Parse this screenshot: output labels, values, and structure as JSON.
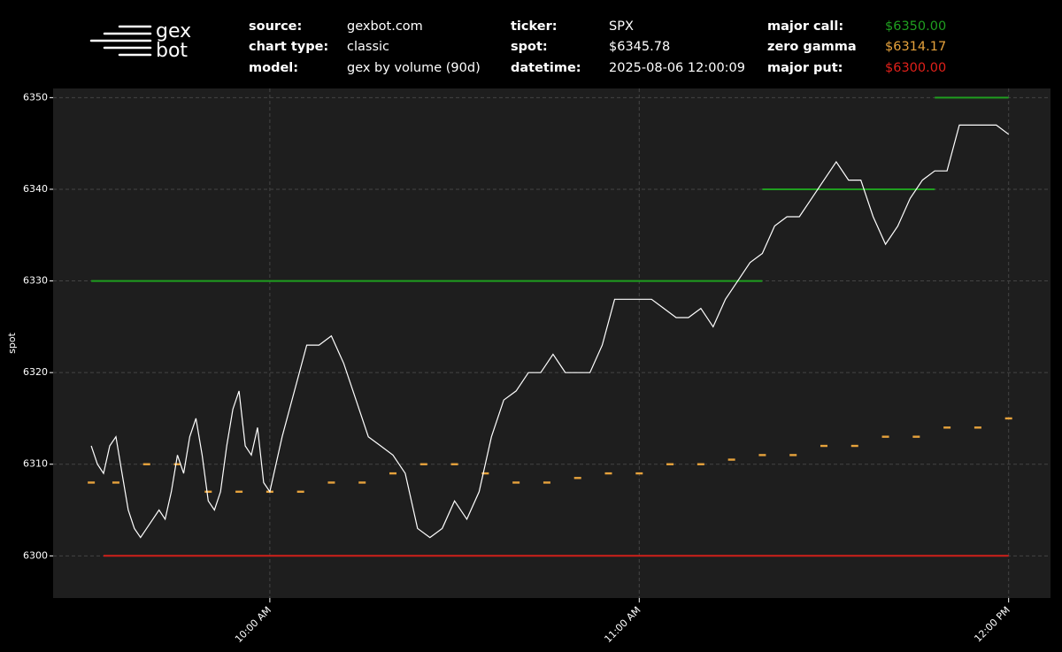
{
  "header": {
    "logo": [
      "gex",
      "bot"
    ],
    "fields": [
      {
        "label": "source:",
        "value": "gexbot.com"
      },
      {
        "label": "chart type:",
        "value": "classic"
      },
      {
        "label": "model:",
        "value": "gex by volume (90d)"
      },
      {
        "label": "ticker:",
        "value": "SPX"
      },
      {
        "label": "spot:",
        "value": "$6345.78"
      },
      {
        "label": "datetime:",
        "value": "2025-08-06 12:00:09"
      },
      {
        "label": "major call:",
        "value": "$6350.00",
        "color": "#1f9e1f"
      },
      {
        "label": "zero gamma",
        "value": "$6314.17",
        "color": "#e6a23c"
      },
      {
        "label": "major put:",
        "value": "$6300.00",
        "color": "#e0201a"
      }
    ]
  },
  "chart_data": {
    "type": "line",
    "ylabel": "spot",
    "xlim": [
      564.8,
      726.8
    ],
    "ylim": [
      6295.4,
      6351
    ],
    "xticks": [
      {
        "value": 600,
        "label": "10:00 AM"
      },
      {
        "value": 660,
        "label": "11:00 AM"
      },
      {
        "value": 720,
        "label": "12:00 PM"
      }
    ],
    "yticks": [
      6300,
      6310,
      6320,
      6330,
      6340,
      6350
    ],
    "grid": true,
    "series": [
      {
        "name": "major call",
        "style": "line",
        "color": "#1f9e1f",
        "x": [
          571,
          680,
          680,
          680,
          708,
          708,
          708,
          720
        ],
        "values": [
          6330,
          6330,
          null,
          6340,
          6340,
          null,
          6350,
          6350
        ]
      },
      {
        "name": "major put",
        "style": "line",
        "color": "#d0201a",
        "x": [
          573,
          720
        ],
        "values": [
          6300,
          6300
        ]
      },
      {
        "name": "zero gamma",
        "style": "dots",
        "color": "#e6a23c",
        "x": [
          571,
          575,
          580,
          585,
          590,
          595,
          600,
          605,
          610,
          615,
          620,
          625,
          630,
          635,
          640,
          645,
          650,
          655,
          660,
          665,
          670,
          675,
          680,
          685,
          690,
          695,
          700,
          705,
          710,
          715,
          720
        ],
        "values": [
          6308,
          6308,
          6310,
          6310,
          6307,
          6307,
          6307,
          6307,
          6308,
          6308,
          6309,
          6310,
          6310,
          6309,
          6308,
          6308,
          6308.5,
          6309,
          6309,
          6310,
          6310,
          6310.5,
          6311,
          6311,
          6312,
          6312,
          6313,
          6313,
          6314,
          6314,
          6315
        ]
      },
      {
        "name": "spot",
        "style": "line",
        "color": "#ffffff",
        "x": [
          571,
          572,
          573,
          574,
          575,
          576,
          577,
          578,
          579,
          580,
          581,
          582,
          583,
          584,
          585,
          586,
          587,
          588,
          589,
          590,
          591,
          592,
          593,
          594,
          595,
          596,
          597,
          598,
          599,
          600,
          602,
          604,
          606,
          608,
          610,
          612,
          614,
          616,
          618,
          620,
          622,
          624,
          626,
          628,
          630,
          632,
          634,
          636,
          638,
          640,
          642,
          644,
          646,
          648,
          650,
          652,
          654,
          656,
          658,
          660,
          662,
          664,
          666,
          668,
          670,
          672,
          674,
          676,
          678,
          680,
          682,
          684,
          686,
          688,
          690,
          692,
          694,
          696,
          698,
          700,
          702,
          704,
          706,
          708,
          710,
          712,
          714,
          716,
          718,
          720
        ],
        "values": [
          6312,
          6310,
          6309,
          6312,
          6313,
          6309,
          6305,
          6303,
          6302,
          6303,
          6304,
          6305,
          6304,
          6307,
          6311,
          6309,
          6313,
          6315,
          6311,
          6306,
          6305,
          6307,
          6312,
          6316,
          6318,
          6312,
          6311,
          6314,
          6308,
          6307,
          6313,
          6318,
          6323,
          6323,
          6324,
          6321,
          6317,
          6313,
          6312,
          6311,
          6309,
          6303,
          6302,
          6303,
          6306,
          6304,
          6307,
          6313,
          6317,
          6318,
          6320,
          6320,
          6322,
          6320,
          6320,
          6320,
          6323,
          6328,
          6328,
          6328,
          6328,
          6327,
          6326,
          6326,
          6327,
          6325,
          6328,
          6330,
          6332,
          6333,
          6336,
          6337,
          6337,
          6339,
          6341,
          6343,
          6341,
          6341,
          6337,
          6334,
          6336,
          6339,
          6341,
          6342,
          6342,
          6347,
          6347,
          6347,
          6347,
          6346
        ]
      }
    ]
  }
}
